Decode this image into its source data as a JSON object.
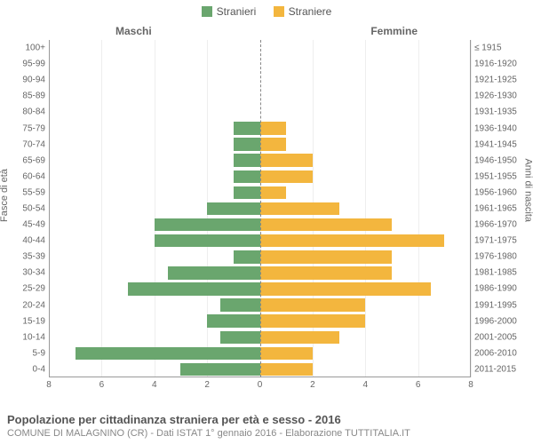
{
  "legend": {
    "male_label": "Stranieri",
    "female_label": "Straniere"
  },
  "top_labels": {
    "left": "Maschi",
    "right": "Femmine"
  },
  "y_title_left": "Fasce di età",
  "y_title_right": "Anni di nascita",
  "title": "Popolazione per cittadinanza straniera per età e sesso - 2016",
  "subtitle": "COMUNE DI MALAGNINO (CR) - Dati ISTAT 1° gennaio 2016 - Elaborazione TUTTITALIA.IT",
  "chart": {
    "type": "pyramid-bar",
    "male_color": "#6aa66e",
    "female_color": "#f3b63e",
    "background": "#ffffff",
    "grid_color": "#eeeeee",
    "axis_color": "#999999",
    "center_dash_color": "#888888",
    "xmax": 8,
    "xtick_step": 2,
    "xticks": [
      8,
      6,
      4,
      2,
      0,
      2,
      4,
      6,
      8
    ],
    "fontsize_ticks": 10,
    "fontsize_legend": 12,
    "rows": [
      {
        "age": "100+",
        "birth": "≤ 1915",
        "m": 0,
        "f": 0
      },
      {
        "age": "95-99",
        "birth": "1916-1920",
        "m": 0,
        "f": 0
      },
      {
        "age": "90-94",
        "birth": "1921-1925",
        "m": 0,
        "f": 0
      },
      {
        "age": "85-89",
        "birth": "1926-1930",
        "m": 0,
        "f": 0
      },
      {
        "age": "80-84",
        "birth": "1931-1935",
        "m": 0,
        "f": 0
      },
      {
        "age": "75-79",
        "birth": "1936-1940",
        "m": 1.0,
        "f": 1.0
      },
      {
        "age": "70-74",
        "birth": "1941-1945",
        "m": 1.0,
        "f": 1.0
      },
      {
        "age": "65-69",
        "birth": "1946-1950",
        "m": 1.0,
        "f": 2.0
      },
      {
        "age": "60-64",
        "birth": "1951-1955",
        "m": 1.0,
        "f": 2.0
      },
      {
        "age": "55-59",
        "birth": "1956-1960",
        "m": 1.0,
        "f": 1.0
      },
      {
        "age": "50-54",
        "birth": "1961-1965",
        "m": 2.0,
        "f": 3.0
      },
      {
        "age": "45-49",
        "birth": "1966-1970",
        "m": 4.0,
        "f": 5.0
      },
      {
        "age": "40-44",
        "birth": "1971-1975",
        "m": 4.0,
        "f": 7.0
      },
      {
        "age": "35-39",
        "birth": "1976-1980",
        "m": 1.0,
        "f": 5.0
      },
      {
        "age": "30-34",
        "birth": "1981-1985",
        "m": 3.5,
        "f": 5.0
      },
      {
        "age": "25-29",
        "birth": "1986-1990",
        "m": 5.0,
        "f": 6.5
      },
      {
        "age": "20-24",
        "birth": "1991-1995",
        "m": 1.5,
        "f": 4.0
      },
      {
        "age": "15-19",
        "birth": "1996-2000",
        "m": 2.0,
        "f": 4.0
      },
      {
        "age": "10-14",
        "birth": "2001-2005",
        "m": 1.5,
        "f": 3.0
      },
      {
        "age": "5-9",
        "birth": "2006-2010",
        "m": 7.0,
        "f": 2.0
      },
      {
        "age": "0-4",
        "birth": "2011-2015",
        "m": 3.0,
        "f": 2.0
      }
    ]
  }
}
